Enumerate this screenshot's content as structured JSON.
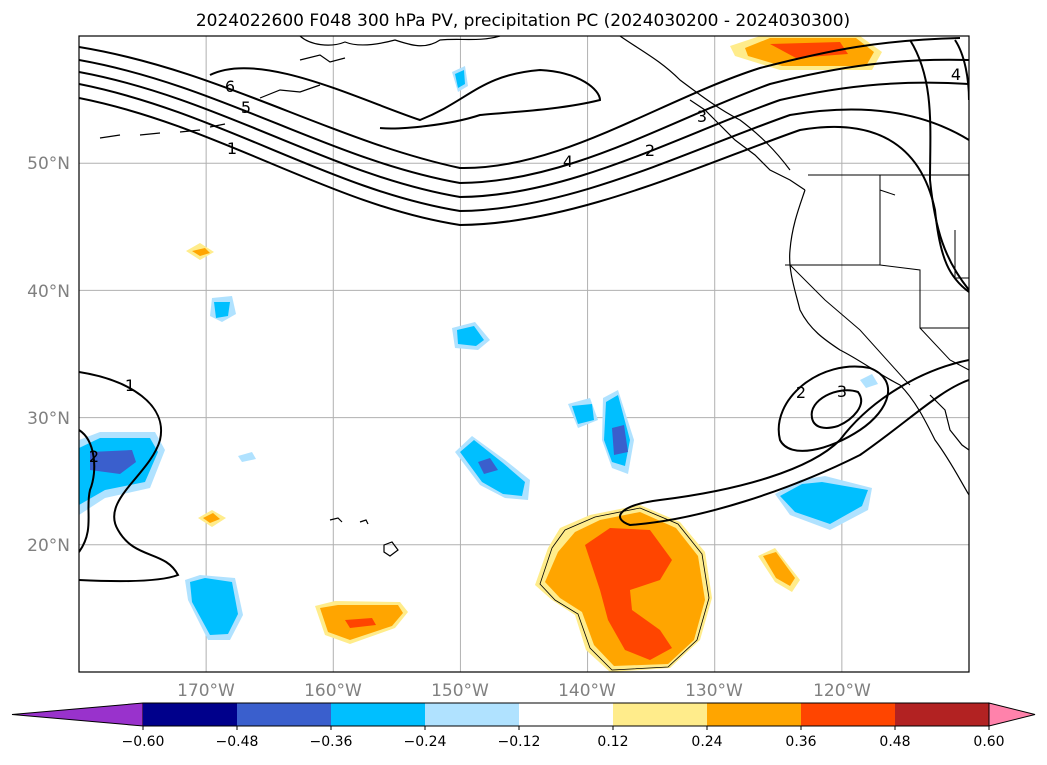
{
  "title": "2024022600 F048 300 hPa PV, precipitation PC (2024030200 - 2024030300)",
  "map": {
    "lon_range": [
      -180,
      -110
    ],
    "lat_range": [
      10,
      60
    ],
    "lat_gridlines": [
      20,
      30,
      40,
      50
    ],
    "lon_gridlines": [
      -170,
      -160,
      -150,
      -140,
      -130,
      -120
    ],
    "lat_labels": [
      "20°N",
      "30°N",
      "40°N",
      "50°N"
    ],
    "lon_labels": [
      "170°W",
      "160°W",
      "150°W",
      "140°W",
      "130°W",
      "120°W"
    ],
    "gridline_color": "#b0b0b0",
    "coastline_color": "#000000"
  },
  "pv_contour_labels": [
    "6",
    "5",
    "1",
    "4",
    "2",
    "3",
    "1",
    "2",
    "2",
    "3",
    "4"
  ],
  "colorbar": {
    "boundaries": [
      "−0.60",
      "−0.48",
      "−0.36",
      "−0.24",
      "−0.12",
      "0.12",
      "0.24",
      "0.36",
      "0.48",
      "0.60"
    ],
    "colors": [
      "#9932cc",
      "#00008b",
      "#3a5fcd",
      "#00bfff",
      "#b0e2ff",
      "#ffffff",
      "#ffec8b",
      "#ffa500",
      "#ff4500",
      "#b22222",
      "#ff82ab"
    ],
    "extend": "both"
  },
  "chart_data": {
    "type": "contour",
    "field": "300 hPa PV (contours) with precipitation PC (shaded)",
    "pv_levels": [
      1,
      2,
      3,
      4,
      5,
      6
    ],
    "precip_levels": [
      -0.6,
      -0.48,
      -0.36,
      -0.24,
      -0.12,
      0.12,
      0.24,
      0.36,
      0.48,
      0.6
    ]
  }
}
